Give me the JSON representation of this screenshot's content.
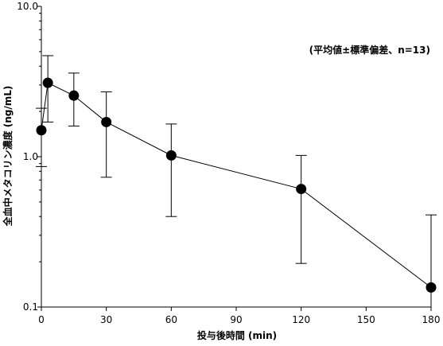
{
  "chart_data": {
    "type": "line",
    "title": "",
    "xlabel": "投与後時間 (min)",
    "ylabel": "全血中メタコリン濃度 (ng/mL)",
    "annotation": "(平均値±標準偏差、n=13)",
    "xlim": [
      0,
      180
    ],
    "ylim": [
      0.1,
      10.0
    ],
    "yscale": "log",
    "grid": false,
    "x_ticks": [
      0,
      30,
      60,
      90,
      120,
      150,
      180
    ],
    "x_tick_labels": [
      "0",
      "30",
      "60",
      "90",
      "120",
      "150",
      "180"
    ],
    "y_ticks": [
      0.1,
      1.0,
      10.0
    ],
    "y_tick_labels": [
      "0.1",
      "1.0",
      "10.0"
    ],
    "series": [
      {
        "x": [
          0,
          3,
          15,
          30,
          60,
          120,
          180
        ],
        "y": [
          1.5,
          3.1,
          2.55,
          1.7,
          1.02,
          0.61,
          0.135
        ],
        "err_low": [
          0.86,
          1.7,
          1.6,
          0.73,
          0.4,
          0.195,
          0.0
        ],
        "err_high": [
          2.1,
          4.7,
          3.6,
          2.7,
          1.65,
          1.02,
          0.41
        ]
      }
    ]
  }
}
